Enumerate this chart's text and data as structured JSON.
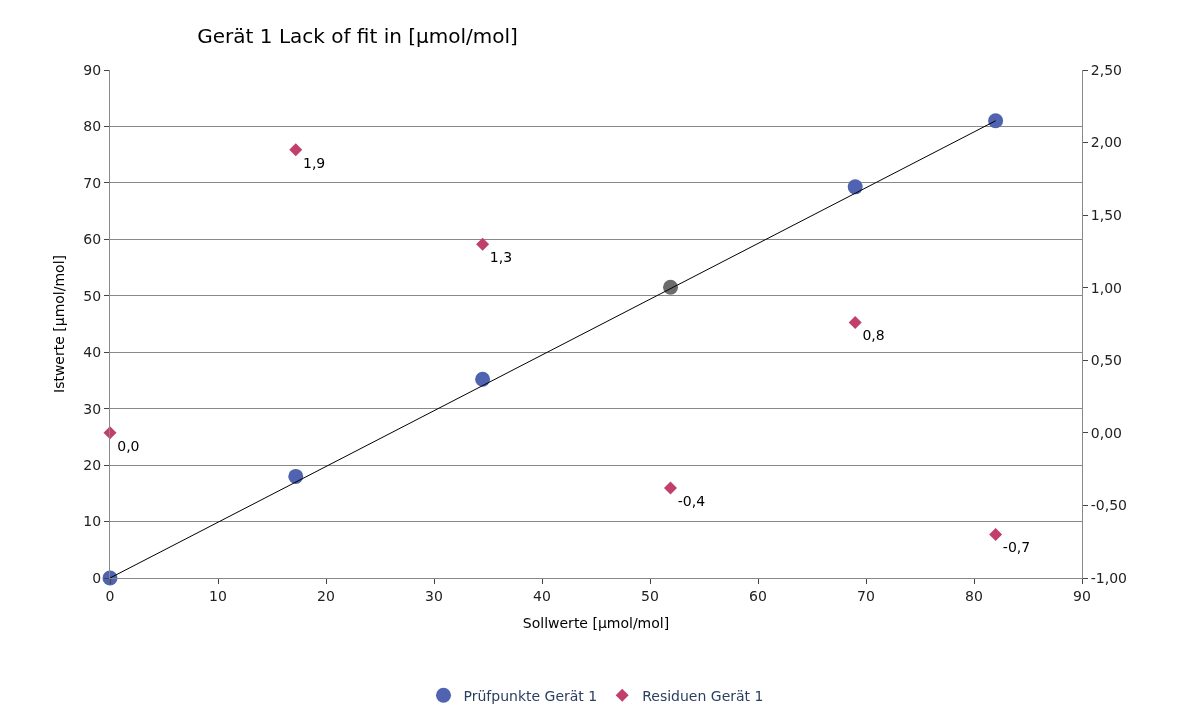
{
  "chart_data": {
    "type": "scatter",
    "title": "Gerät 1 Lack of fit in [µmol/mol]",
    "xlabel": "Sollwerte [µmol/mol]",
    "ylabel": "Istwerte [µmol/mol]",
    "xlim": [
      0,
      90
    ],
    "xticks": [
      0,
      10,
      20,
      30,
      40,
      50,
      60,
      70,
      80,
      90
    ],
    "ylim": [
      0,
      90
    ],
    "yticks": [
      0,
      10,
      20,
      30,
      40,
      50,
      60,
      70,
      80,
      90
    ],
    "y2lim": [
      -1,
      2.5
    ],
    "y2ticks": [
      {
        "value": -1,
        "label": "-1,00"
      },
      {
        "value": -0.5,
        "label": "-0,50"
      },
      {
        "value": 0,
        "label": "0,00"
      },
      {
        "value": 0.5,
        "label": "0,50"
      },
      {
        "value": 1,
        "label": "1,00"
      },
      {
        "value": 1.5,
        "label": "1,50"
      },
      {
        "value": 2,
        "label": "2,00"
      },
      {
        "value": 2.5,
        "label": "2,50"
      }
    ],
    "grid": "y",
    "legend": "bottom",
    "series": [
      {
        "name": "Prüfpunkte Gerät 1",
        "marker": "circle",
        "colors": [
          "#4f63b0",
          "#4f63b0",
          "#4f63b0",
          "#6b6b6b",
          "#4f63b0",
          "#4f63b0"
        ],
        "x": [
          0,
          17.2,
          34.5,
          51.9,
          69,
          82
        ],
        "values": [
          0,
          18,
          35.2,
          51.5,
          69.3,
          81
        ]
      },
      {
        "name": "Residuen Gerät 1",
        "marker": "diamond",
        "axis": "y2",
        "color": "#c0406a",
        "x": [
          0,
          17.2,
          34.5,
          51.9,
          69,
          82
        ],
        "values": [
          0,
          1.95,
          1.3,
          -0.38,
          0.76,
          -0.7
        ],
        "value_labels": [
          "0,0",
          "1,9",
          "1,3",
          "-0,4",
          "0,8",
          "-0,7"
        ]
      },
      {
        "type": "line",
        "color": "#000000",
        "x": [
          0,
          82
        ],
        "values": [
          0,
          81
        ]
      }
    ]
  }
}
